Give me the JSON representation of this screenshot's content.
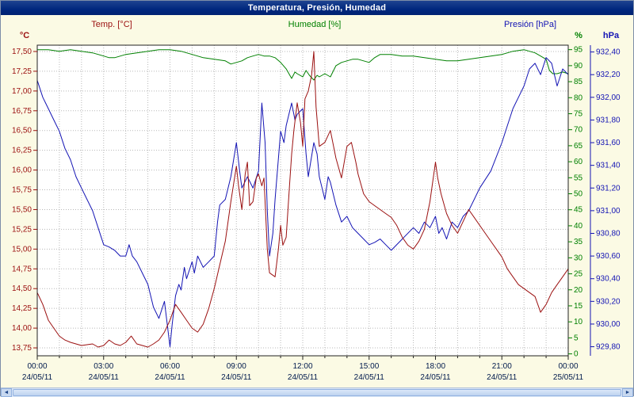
{
  "title": "Temperatura, Presión, Humedad",
  "scrollbar": {
    "left_arrow": "◄",
    "right_arrow": "►"
  },
  "colors": {
    "background": "#fbfae4",
    "plot_background": "#ffffff",
    "titlebar": "#00277e",
    "temperature": "#9b1010",
    "humidity": "#008000",
    "pressure": "#1414b4"
  },
  "chart_data": {
    "type": "line",
    "title": "Temperatura, Presión, Humedad",
    "grid": true,
    "grid_color": "#b8b8b8",
    "legend_position": "top",
    "x_axis": {
      "text_color": "#001a4d",
      "hours_min": 0,
      "hours_max": 24,
      "grid_hours_step": 1,
      "tick_hours": [
        0,
        3,
        6,
        9,
        12,
        15,
        18,
        21,
        24
      ],
      "tick_times": [
        "00:00",
        "03:00",
        "06:00",
        "09:00",
        "12:00",
        "15:00",
        "18:00",
        "21:00",
        "00:00"
      ],
      "tick_dates": [
        "24/05/11",
        "24/05/11",
        "24/05/11",
        "24/05/11",
        "24/05/11",
        "24/05/11",
        "24/05/11",
        "24/05/11",
        "25/05/11"
      ]
    },
    "axes": {
      "temperature": {
        "side": "left",
        "unit": "°C",
        "color": "#9b1010",
        "min": 13.65,
        "max": 17.58,
        "tick_min": 13.75,
        "tick_max": 17.5,
        "tick_step": 0.25,
        "decimals": 2
      },
      "humidity": {
        "side": "right-inner",
        "unit": "%",
        "color": "#008000",
        "min": -0.6,
        "max": 96.4,
        "tick_min": 0,
        "tick_max": 95,
        "tick_step": 5,
        "decimals": 0
      },
      "pressure": {
        "side": "right-outer",
        "unit": "hPa",
        "color": "#1414b4",
        "min": 929.72,
        "max": 932.46,
        "tick_min": 929.8,
        "tick_max": 932.4,
        "tick_step": 0.2,
        "decimals": 2
      }
    },
    "series": [
      {
        "name": "Temp. [°C]",
        "axis": "temperature",
        "color": "#9b1010",
        "points": [
          [
            0,
            14.45
          ],
          [
            0.25,
            14.3
          ],
          [
            0.5,
            14.1
          ],
          [
            0.75,
            14.0
          ],
          [
            1,
            13.9
          ],
          [
            1.25,
            13.85
          ],
          [
            1.5,
            13.82
          ],
          [
            2,
            13.78
          ],
          [
            2.5,
            13.8
          ],
          [
            2.75,
            13.76
          ],
          [
            3,
            13.78
          ],
          [
            3.25,
            13.85
          ],
          [
            3.5,
            13.8
          ],
          [
            3.75,
            13.78
          ],
          [
            4,
            13.82
          ],
          [
            4.25,
            13.9
          ],
          [
            4.5,
            13.8
          ],
          [
            4.75,
            13.78
          ],
          [
            5,
            13.76
          ],
          [
            5.25,
            13.8
          ],
          [
            5.5,
            13.85
          ],
          [
            5.75,
            13.95
          ],
          [
            6,
            14.1
          ],
          [
            6.25,
            14.3
          ],
          [
            6.5,
            14.2
          ],
          [
            6.75,
            14.1
          ],
          [
            7,
            14.0
          ],
          [
            7.25,
            13.95
          ],
          [
            7.5,
            14.05
          ],
          [
            7.75,
            14.25
          ],
          [
            8,
            14.5
          ],
          [
            8.25,
            14.8
          ],
          [
            8.5,
            15.1
          ],
          [
            8.75,
            15.6
          ],
          [
            9,
            16.05
          ],
          [
            9.1,
            15.8
          ],
          [
            9.25,
            15.5
          ],
          [
            9.4,
            15.95
          ],
          [
            9.5,
            16.1
          ],
          [
            9.6,
            15.55
          ],
          [
            9.75,
            15.6
          ],
          [
            9.9,
            15.9
          ],
          [
            10,
            15.95
          ],
          [
            10.15,
            15.8
          ],
          [
            10.25,
            15.9
          ],
          [
            10.4,
            15.0
          ],
          [
            10.5,
            14.7
          ],
          [
            10.75,
            14.65
          ],
          [
            10.9,
            15.0
          ],
          [
            11,
            15.3
          ],
          [
            11.1,
            15.05
          ],
          [
            11.25,
            15.15
          ],
          [
            11.4,
            15.8
          ],
          [
            11.5,
            16.2
          ],
          [
            11.6,
            16.5
          ],
          [
            11.75,
            16.85
          ],
          [
            11.9,
            16.6
          ],
          [
            12,
            16.3
          ],
          [
            12.1,
            16.9
          ],
          [
            12.25,
            17.0
          ],
          [
            12.4,
            17.2
          ],
          [
            12.5,
            17.5
          ],
          [
            12.6,
            16.8
          ],
          [
            12.75,
            16.3
          ],
          [
            13,
            16.35
          ],
          [
            13.25,
            16.5
          ],
          [
            13.5,
            16.15
          ],
          [
            13.75,
            15.9
          ],
          [
            14,
            16.3
          ],
          [
            14.2,
            16.35
          ],
          [
            14.4,
            16.1
          ],
          [
            14.5,
            15.95
          ],
          [
            14.75,
            15.7
          ],
          [
            15,
            15.6
          ],
          [
            15.25,
            15.55
          ],
          [
            15.5,
            15.5
          ],
          [
            15.75,
            15.45
          ],
          [
            16,
            15.4
          ],
          [
            16.25,
            15.3
          ],
          [
            16.5,
            15.15
          ],
          [
            16.75,
            15.05
          ],
          [
            17,
            15.0
          ],
          [
            17.25,
            15.1
          ],
          [
            17.5,
            15.25
          ],
          [
            17.75,
            15.6
          ],
          [
            18,
            16.1
          ],
          [
            18.1,
            15.9
          ],
          [
            18.25,
            15.7
          ],
          [
            18.5,
            15.45
          ],
          [
            18.75,
            15.3
          ],
          [
            19,
            15.2
          ],
          [
            19.25,
            15.35
          ],
          [
            19.5,
            15.5
          ],
          [
            19.75,
            15.4
          ],
          [
            20,
            15.3
          ],
          [
            20.25,
            15.2
          ],
          [
            20.5,
            15.1
          ],
          [
            20.75,
            15.0
          ],
          [
            21,
            14.9
          ],
          [
            21.25,
            14.75
          ],
          [
            21.5,
            14.65
          ],
          [
            21.75,
            14.55
          ],
          [
            22,
            14.5
          ],
          [
            22.25,
            14.45
          ],
          [
            22.5,
            14.4
          ],
          [
            22.75,
            14.2
          ],
          [
            23,
            14.3
          ],
          [
            23.25,
            14.45
          ],
          [
            23.5,
            14.55
          ],
          [
            23.75,
            14.65
          ],
          [
            24,
            14.75
          ]
        ]
      },
      {
        "name": "Humedad [%]",
        "axis": "humidity",
        "color": "#008000",
        "points": [
          [
            0,
            95
          ],
          [
            0.5,
            95
          ],
          [
            1,
            94.5
          ],
          [
            1.5,
            95
          ],
          [
            2,
            94.5
          ],
          [
            2.5,
            94
          ],
          [
            3,
            93
          ],
          [
            3.25,
            92.5
          ],
          [
            3.5,
            92.5
          ],
          [
            4,
            93.5
          ],
          [
            4.5,
            94
          ],
          [
            5,
            94.5
          ],
          [
            5.5,
            95
          ],
          [
            6,
            95
          ],
          [
            6.5,
            94.5
          ],
          [
            7,
            93.5
          ],
          [
            7.5,
            92.5
          ],
          [
            8,
            92
          ],
          [
            8.5,
            91.5
          ],
          [
            8.75,
            90.5
          ],
          [
            9,
            91
          ],
          [
            9.25,
            91.5
          ],
          [
            9.5,
            92.5
          ],
          [
            9.75,
            93
          ],
          [
            10,
            93.5
          ],
          [
            10.25,
            93
          ],
          [
            10.5,
            93
          ],
          [
            10.75,
            92.5
          ],
          [
            11,
            91
          ],
          [
            11.25,
            89
          ],
          [
            11.5,
            86
          ],
          [
            11.65,
            88
          ],
          [
            11.75,
            87.5
          ],
          [
            12,
            86.5
          ],
          [
            12.15,
            88.5
          ],
          [
            12.3,
            87
          ],
          [
            12.5,
            85.5
          ],
          [
            12.65,
            87
          ],
          [
            12.75,
            86.5
          ],
          [
            13,
            87.5
          ],
          [
            13.25,
            86.5
          ],
          [
            13.5,
            90
          ],
          [
            13.75,
            91
          ],
          [
            14,
            91.5
          ],
          [
            14.25,
            92
          ],
          [
            14.5,
            92
          ],
          [
            14.75,
            91.5
          ],
          [
            15,
            91
          ],
          [
            15.25,
            92.5
          ],
          [
            15.5,
            93.5
          ],
          [
            16,
            93.5
          ],
          [
            16.5,
            93
          ],
          [
            17,
            93
          ],
          [
            17.5,
            92.5
          ],
          [
            18,
            92
          ],
          [
            18.5,
            91.5
          ],
          [
            19,
            91.5
          ],
          [
            19.5,
            92
          ],
          [
            20,
            92.5
          ],
          [
            20.5,
            93
          ],
          [
            21,
            93.5
          ],
          [
            21.5,
            94.5
          ],
          [
            22,
            95
          ],
          [
            22.25,
            94.5
          ],
          [
            22.5,
            94
          ],
          [
            22.75,
            93
          ],
          [
            23,
            92
          ],
          [
            23.15,
            88.5
          ],
          [
            23.3,
            87.5
          ],
          [
            23.5,
            87.5
          ],
          [
            23.75,
            88
          ],
          [
            24,
            87.5
          ]
        ]
      },
      {
        "name": "Presión [hPa]",
        "axis": "pressure",
        "color": "#1414b4",
        "points": [
          [
            0,
            932.15
          ],
          [
            0.25,
            932.0
          ],
          [
            0.5,
            931.9
          ],
          [
            0.75,
            931.8
          ],
          [
            1,
            931.7
          ],
          [
            1.25,
            931.55
          ],
          [
            1.5,
            931.45
          ],
          [
            1.75,
            931.3
          ],
          [
            2,
            931.2
          ],
          [
            2.25,
            931.1
          ],
          [
            2.5,
            931.0
          ],
          [
            2.75,
            930.85
          ],
          [
            3,
            930.7
          ],
          [
            3.25,
            930.68
          ],
          [
            3.5,
            930.65
          ],
          [
            3.75,
            930.6
          ],
          [
            4,
            930.6
          ],
          [
            4.15,
            930.7
          ],
          [
            4.3,
            930.6
          ],
          [
            4.5,
            930.55
          ],
          [
            4.75,
            930.45
          ],
          [
            5,
            930.35
          ],
          [
            5.25,
            930.15
          ],
          [
            5.5,
            930.05
          ],
          [
            5.75,
            930.2
          ],
          [
            6,
            929.8
          ],
          [
            6.1,
            930.0
          ],
          [
            6.25,
            930.25
          ],
          [
            6.4,
            930.35
          ],
          [
            6.5,
            930.3
          ],
          [
            6.65,
            930.5
          ],
          [
            6.75,
            930.4
          ],
          [
            7,
            930.55
          ],
          [
            7.1,
            930.45
          ],
          [
            7.25,
            930.6
          ],
          [
            7.5,
            930.5
          ],
          [
            7.75,
            930.55
          ],
          [
            8,
            930.6
          ],
          [
            8.15,
            930.9
          ],
          [
            8.25,
            931.05
          ],
          [
            8.5,
            931.1
          ],
          [
            8.75,
            931.3
          ],
          [
            9,
            931.6
          ],
          [
            9.15,
            931.35
          ],
          [
            9.25,
            931.2
          ],
          [
            9.5,
            931.3
          ],
          [
            9.75,
            931.2
          ],
          [
            10,
            931.35
          ],
          [
            10.15,
            931.95
          ],
          [
            10.3,
            931.6
          ],
          [
            10.4,
            931.0
          ],
          [
            10.5,
            930.6
          ],
          [
            10.65,
            930.8
          ],
          [
            10.75,
            931.1
          ],
          [
            11,
            931.7
          ],
          [
            11.15,
            931.6
          ],
          [
            11.25,
            931.75
          ],
          [
            11.5,
            931.95
          ],
          [
            11.65,
            931.8
          ],
          [
            11.75,
            931.85
          ],
          [
            12,
            931.9
          ],
          [
            12.15,
            931.5
          ],
          [
            12.25,
            931.3
          ],
          [
            12.5,
            931.6
          ],
          [
            12.65,
            931.5
          ],
          [
            12.75,
            931.3
          ],
          [
            13,
            931.1
          ],
          [
            13.15,
            931.3
          ],
          [
            13.25,
            931.25
          ],
          [
            13.5,
            931.05
          ],
          [
            13.75,
            930.9
          ],
          [
            14,
            930.95
          ],
          [
            14.25,
            930.85
          ],
          [
            14.5,
            930.8
          ],
          [
            14.75,
            930.75
          ],
          [
            15,
            930.7
          ],
          [
            15.25,
            930.72
          ],
          [
            15.5,
            930.75
          ],
          [
            15.75,
            930.7
          ],
          [
            16,
            930.65
          ],
          [
            16.5,
            930.75
          ],
          [
            17,
            930.85
          ],
          [
            17.25,
            930.8
          ],
          [
            17.5,
            930.9
          ],
          [
            17.75,
            930.85
          ],
          [
            18,
            930.95
          ],
          [
            18.15,
            930.8
          ],
          [
            18.3,
            930.85
          ],
          [
            18.5,
            930.75
          ],
          [
            18.75,
            930.9
          ],
          [
            19,
            930.85
          ],
          [
            19.25,
            930.95
          ],
          [
            19.5,
            931.0
          ],
          [
            19.75,
            931.1
          ],
          [
            20,
            931.2
          ],
          [
            20.5,
            931.35
          ],
          [
            21,
            931.6
          ],
          [
            21.25,
            931.75
          ],
          [
            21.5,
            931.9
          ],
          [
            21.75,
            932.0
          ],
          [
            22,
            932.1
          ],
          [
            22.25,
            932.25
          ],
          [
            22.5,
            932.3
          ],
          [
            22.75,
            932.2
          ],
          [
            23,
            932.35
          ],
          [
            23.25,
            932.3
          ],
          [
            23.5,
            932.1
          ],
          [
            23.75,
            932.25
          ],
          [
            24,
            932.2
          ]
        ]
      }
    ]
  }
}
